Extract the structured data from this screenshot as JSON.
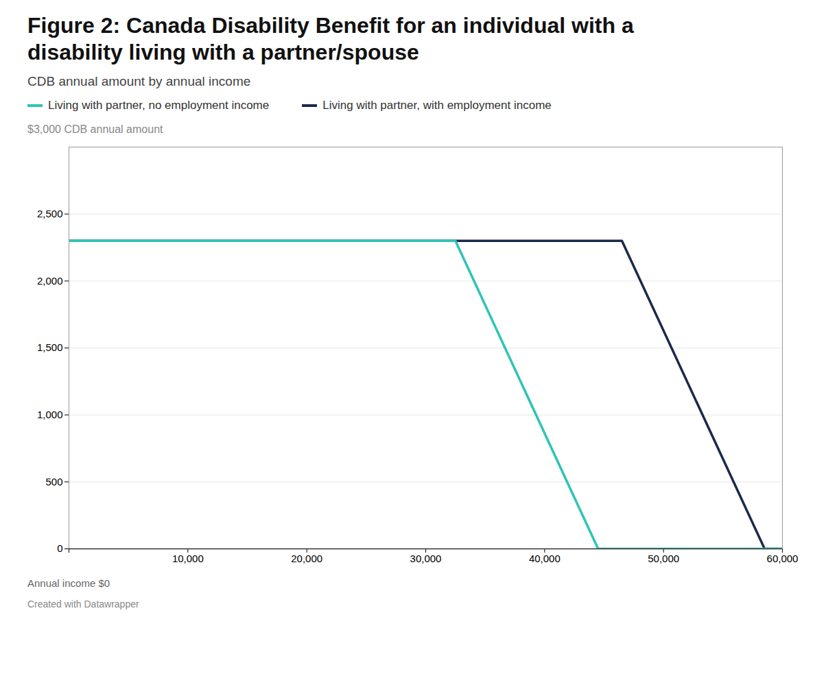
{
  "chart_data": {
    "type": "line",
    "title": "Figure 2: Canada Disability Benefit for an individual with a disability living with a partner/spouse",
    "subtitle": "CDB annual amount by annual income",
    "ylabel": "$3,000 CDB annual amount",
    "xlabel": "Annual income $0",
    "caption": "Created with Datawrapper",
    "series": [
      {
        "name": "Living with partner, no employment income",
        "color": "#2EC4B6",
        "x": [
          0,
          32500,
          44500,
          60000
        ],
        "values": [
          2300,
          2300,
          0,
          0
        ]
      },
      {
        "name": "Living with partner, with employment income",
        "color": "#1B2A4A",
        "x": [
          0,
          46500,
          58500,
          60000
        ],
        "values": [
          2300,
          2300,
          0,
          0
        ]
      }
    ],
    "xlim": [
      0,
      60000
    ],
    "ylim": [
      0,
      3000
    ],
    "xticks": [
      {
        "value": 0,
        "label": null
      },
      {
        "value": 10000,
        "label": "10,000"
      },
      {
        "value": 20000,
        "label": "20,000"
      },
      {
        "value": 30000,
        "label": "30,000"
      },
      {
        "value": 40000,
        "label": "40,000"
      },
      {
        "value": 50000,
        "label": "50,000"
      },
      {
        "value": 60000,
        "label": "60,000"
      }
    ],
    "yticks": [
      0,
      500,
      {
        "value": 1000,
        "label": "1,000"
      },
      {
        "value": 1500,
        "label": "1,500"
      },
      {
        "value": 2000,
        "label": "2,000"
      },
      {
        "value": 2500,
        "label": "2,500"
      }
    ],
    "grid": "y",
    "legend": "top"
  }
}
